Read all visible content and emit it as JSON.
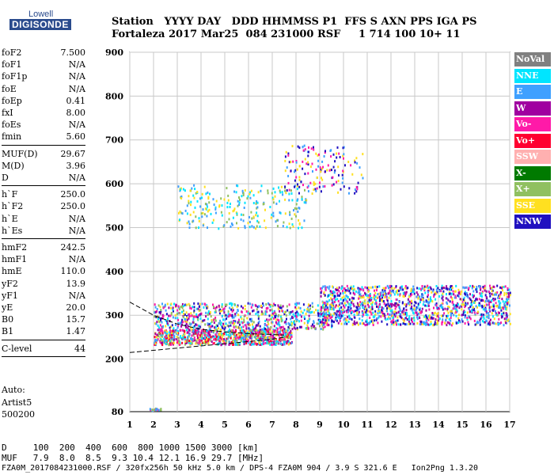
{
  "logo": {
    "line1": "Lowell",
    "line2": "DIGISONDE"
  },
  "header": {
    "labels": "Station   YYYY DAY   DDD HHMMSS P1  FFS S AXN PPS IGA PS",
    "values": "Fortaleza 2017 Mar25  084 231000 RSF     1 714 100 10+ 11"
  },
  "params": [
    {
      "k": "foF2",
      "v": "7.500"
    },
    {
      "k": "foF1",
      "v": "N/A"
    },
    {
      "k": "foF1p",
      "v": "N/A"
    },
    {
      "k": "foE",
      "v": "N/A"
    },
    {
      "k": "foEp",
      "v": "0.41"
    },
    {
      "k": "fxI",
      "v": "8.00"
    },
    {
      "k": "foEs",
      "v": "N/A"
    },
    {
      "k": "fmin",
      "v": "5.60"
    },
    {
      "k": "MUF(D)",
      "v": "29.67"
    },
    {
      "k": "M(D)",
      "v": "3.96"
    },
    {
      "k": "D",
      "v": "N/A"
    },
    {
      "k": "h`F",
      "v": "250.0"
    },
    {
      "k": "h`F2",
      "v": "250.0"
    },
    {
      "k": "h`E",
      "v": "N/A"
    },
    {
      "k": "h`Es",
      "v": "N/A"
    },
    {
      "k": "hmF2",
      "v": "242.5"
    },
    {
      "k": "hmF1",
      "v": "N/A"
    },
    {
      "k": "hmE",
      "v": "110.0"
    },
    {
      "k": "yF2",
      "v": "13.9"
    },
    {
      "k": "yF1",
      "v": "N/A"
    },
    {
      "k": "yE",
      "v": "20.0"
    },
    {
      "k": "B0",
      "v": "15.7"
    },
    {
      "k": "B1",
      "v": "1.47"
    },
    {
      "k": "C-level",
      "v": "44"
    }
  ],
  "auto": {
    "line1": "Auto:",
    "line2": "Artist5",
    "line3": "500200"
  },
  "legend": [
    {
      "label": "NoVal",
      "color": "#808080"
    },
    {
      "label": "NNE",
      "color": "#00e5ff"
    },
    {
      "label": "E",
      "color": "#3fa0ff"
    },
    {
      "label": "W",
      "color": "#a000a0"
    },
    {
      "label": "Vo-",
      "color": "#ff1aa8"
    },
    {
      "label": "Vo+",
      "color": "#ff0030"
    },
    {
      "label": "SSW",
      "color": "#ffb0b0"
    },
    {
      "label": "X-",
      "color": "#007a00"
    },
    {
      "label": "X+",
      "color": "#90c060"
    },
    {
      "label": "SSE",
      "color": "#ffe020"
    },
    {
      "label": "NNW",
      "color": "#2010c0"
    }
  ],
  "footer": {
    "line1": "D     100  200  400  600  800 1000 1500 3000 [km]",
    "line2": "MUF   7.9  8.0  8.5  9.3 10.4 12.1 16.9 29.7 [MHz]",
    "line3": "FZA0M_2017084231000.RSF / 320fx256h 50 kHz 5.0 km / DPS-4 FZA0M 904 / 3.9 S 321.6 E   Ion2Png 1.3.20"
  },
  "chart_data": {
    "type": "scatter",
    "xlim": [
      1,
      17
    ],
    "ylim": [
      80,
      900
    ],
    "x_ticks": [
      1,
      2,
      3,
      4,
      5,
      6,
      7,
      8,
      9,
      10,
      11,
      12,
      13,
      14,
      15,
      16,
      17
    ],
    "y_ticks": [
      80,
      200,
      300,
      400,
      500,
      600,
      700,
      800,
      900
    ],
    "grid": true,
    "legend_placement": "right",
    "clusters": [
      {
        "name": "F trace base",
        "x": [
          2.0,
          7.8
        ],
        "y": [
          235,
          270
        ],
        "color_keys": [
          "Vo-",
          "Vo+",
          "SSE",
          "E",
          "NNE",
          "W",
          "X+"
        ]
      },
      {
        "name": "F trace upper",
        "x": [
          2.0,
          9.5
        ],
        "y": [
          270,
          330
        ],
        "color_keys": [
          "NNE",
          "E",
          "W",
          "Vo-",
          "SSE",
          "X+",
          "NNW"
        ]
      },
      {
        "name": "spread F high",
        "x": [
          9.0,
          17.0
        ],
        "y": [
          280,
          370
        ],
        "color_keys": [
          "NNE",
          "E",
          "W",
          "Vo-",
          "NNW",
          "SSE"
        ]
      },
      {
        "name": "2nd hop",
        "x": [
          3.0,
          8.5
        ],
        "y": [
          500,
          600
        ],
        "color_keys": [
          "SSE",
          "X+",
          "NNE",
          "E"
        ]
      },
      {
        "name": "2nd hop upper",
        "x": [
          7.5,
          10.8
        ],
        "y": [
          580,
          690
        ],
        "color_keys": [
          "SSE",
          "NNW",
          "E",
          "Vo-"
        ]
      },
      {
        "name": "E layer",
        "x": [
          1.7,
          2.3
        ],
        "y": [
          85,
          90
        ],
        "color_keys": [
          "Vo-",
          "X+",
          "E"
        ]
      }
    ],
    "fit_curves": [
      {
        "name": "profile lower",
        "points": [
          [
            1,
            215
          ],
          [
            3,
            225
          ],
          [
            5,
            235
          ],
          [
            7,
            245
          ],
          [
            7.5,
            250
          ]
        ]
      },
      {
        "name": "profile upper",
        "points": [
          [
            1,
            330
          ],
          [
            2,
            300
          ],
          [
            3,
            280
          ],
          [
            4,
            268
          ],
          [
            5,
            262
          ],
          [
            6,
            258
          ],
          [
            7,
            256
          ],
          [
            7.5,
            255
          ]
        ]
      }
    ]
  }
}
